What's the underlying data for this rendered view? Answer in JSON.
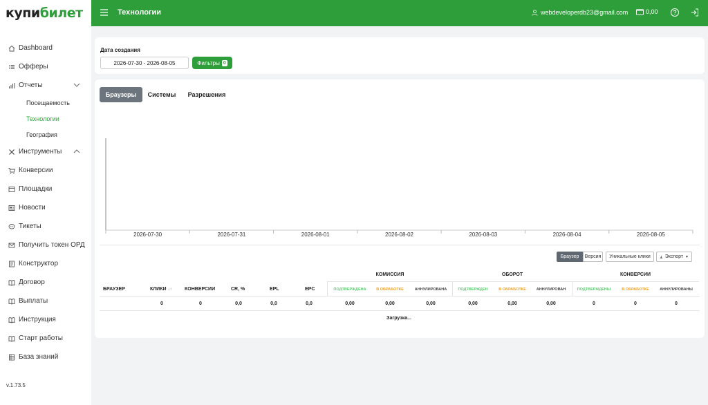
{
  "logo": {
    "part1": "купи",
    "part2": "билет"
  },
  "sidebar": {
    "items": [
      {
        "label": "Dashboard",
        "icon": "home-icon"
      },
      {
        "label": "Офферы",
        "icon": "list-icon"
      },
      {
        "label": "Отчеты",
        "icon": "bar-chart-icon",
        "expanded": true
      },
      {
        "label": "Инструменты",
        "icon": "tools-icon",
        "expanded": false
      },
      {
        "label": "Конверсии",
        "icon": "cart-icon"
      },
      {
        "label": "Площадки",
        "icon": "window-icon"
      },
      {
        "label": "Новости",
        "icon": "newspaper-icon"
      },
      {
        "label": "Тикеты",
        "icon": "chat-icon"
      },
      {
        "label": "Получить токен ОРД",
        "icon": "envelope-icon"
      },
      {
        "label": "Конструктор",
        "icon": "builder-icon"
      },
      {
        "label": "Договор",
        "icon": "book-icon"
      },
      {
        "label": "Выплаты",
        "icon": "book-icon"
      },
      {
        "label": "Инструкция",
        "icon": "book-icon"
      },
      {
        "label": "Старт работы",
        "icon": "book-icon"
      },
      {
        "label": "База знаний",
        "icon": "database-icon"
      }
    ],
    "reports_sub": [
      {
        "label": "Посещаемость"
      },
      {
        "label": "Технологии",
        "active": true
      },
      {
        "label": "География"
      }
    ],
    "version": "v.1.73.5"
  },
  "header": {
    "title": "Технологии",
    "user_email": "webdeveloperdb23@gmail.com",
    "balance": "0,00",
    "accent": "#2e9e3a"
  },
  "filters": {
    "label": "Дата создания",
    "date_range": "2026-07-30 - 2026-08-05",
    "filters_button": "Фильтры",
    "filters_count": "0"
  },
  "tabs": [
    {
      "label": "Браузеры",
      "active": true
    },
    {
      "label": "Системы"
    },
    {
      "label": "Разрешения"
    }
  ],
  "chart_data": {
    "type": "line",
    "categories": [
      "2026-07-30",
      "2026-07-31",
      "2026-08-01",
      "2026-08-02",
      "2026-08-03",
      "2026-08-04",
      "2026-08-05"
    ],
    "series": [],
    "grid": false
  },
  "table_controls": {
    "browser_btn": "Браузер",
    "version_btn": "Версия",
    "unique_clicks_btn": "Уникальные клики",
    "export_btn": "Экспорт"
  },
  "table": {
    "headers": {
      "browser": "БРАУЗЕР",
      "clicks": "КЛИКИ",
      "sort_icon": "↓↑",
      "conversions": "КОНВЕРСИИ",
      "cr": "CR, %",
      "epl": "EPL",
      "epc": "EPC"
    },
    "groups": {
      "commission": {
        "label": "КОМИССИЯ",
        "confirmed": "ПОДТВЕРЖДЕНА",
        "processing": "В ОБРАБОТКЕ",
        "cancelled": "АННУЛИРОВАНА"
      },
      "turnover": {
        "label": "ОБОРОТ",
        "confirmed": "ПОДТВЕРЖДЕН",
        "processing": "В ОБРАБОТКЕ",
        "cancelled": "АННУЛИРОВАН"
      },
      "conversions": {
        "label": "КОНВЕРСИИ",
        "confirmed": "ПОДТВЕРЖДЕНЫ",
        "processing": "В ОБРАБОТКЕ",
        "cancelled": "АННУЛИРОВАНЫ"
      }
    },
    "totals": {
      "clicks": "0",
      "conversions": "0",
      "cr": "0,0",
      "epl": "0,0",
      "epc": "0,0",
      "commission_confirmed": "0,00",
      "commission_processing": "0,00",
      "commission_cancelled": "0,00",
      "turnover_confirmed": "0,00",
      "turnover_processing": "0,00",
      "turnover_cancelled": "0,00",
      "conv_confirmed": "0",
      "conv_processing": "0",
      "conv_cancelled": "0"
    },
    "loading": "Загрузка..."
  }
}
